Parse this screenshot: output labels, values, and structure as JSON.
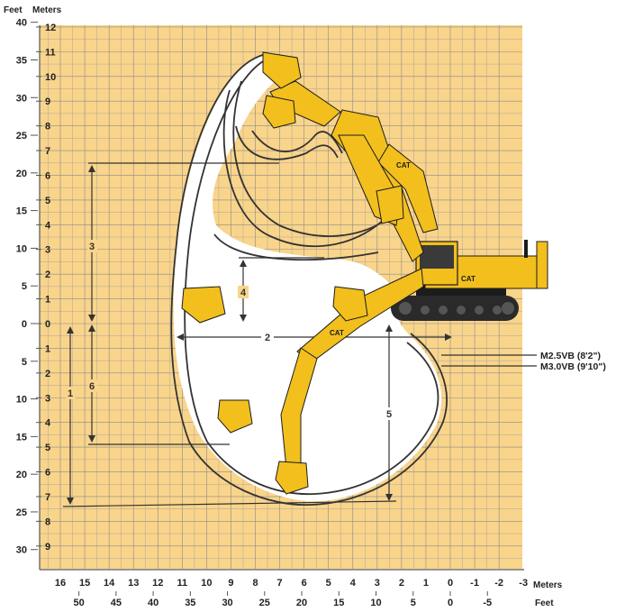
{
  "colors": {
    "grid_bg": "#f9d48b",
    "grid_line": "#8a8a8a",
    "envelope_fill": "#ffffff",
    "envelope_line": "#333333",
    "machine_yellow": "#f2bf1d",
    "machine_black": "#1c1c1c",
    "text": "#222222"
  },
  "axes": {
    "left_feet_title": "Feet",
    "left_meters_title": "Meters",
    "bottom_meters_title": "Meters",
    "bottom_feet_title": "Feet",
    "feet_ticks": [
      "40",
      "35",
      "30",
      "25",
      "20",
      "15",
      "10",
      "5",
      "0",
      "5",
      "10",
      "15",
      "20",
      "25",
      "30"
    ],
    "meter_ticks": [
      "12",
      "11",
      "10",
      "9",
      "8",
      "7",
      "6",
      "5",
      "4",
      "3",
      "2",
      "1",
      "0",
      "1",
      "2",
      "3",
      "4",
      "5",
      "6",
      "7",
      "8",
      "9"
    ],
    "bottom_meter_ticks": [
      "16",
      "15",
      "14",
      "13",
      "12",
      "11",
      "10",
      "9",
      "8",
      "7",
      "6",
      "5",
      "4",
      "3",
      "2",
      "1",
      "0",
      "-1",
      "-2",
      "-3"
    ],
    "bottom_feet_ticks": [
      "50",
      "45",
      "40",
      "35",
      "30",
      "25",
      "20",
      "15",
      "10",
      "5",
      "0",
      "-5"
    ]
  },
  "dimensions": [
    "1",
    "2",
    "3",
    "4",
    "5",
    "6"
  ],
  "legend": {
    "boom_short": "M2.5VB (8'2\")",
    "boom_long": "M3.0VB (9'10\")"
  },
  "machine": {
    "brand": "CAT",
    "icons": [
      "excavator-body-icon",
      "excavator-track-icon",
      "bucket-icon",
      "boom-arm-icon"
    ]
  }
}
